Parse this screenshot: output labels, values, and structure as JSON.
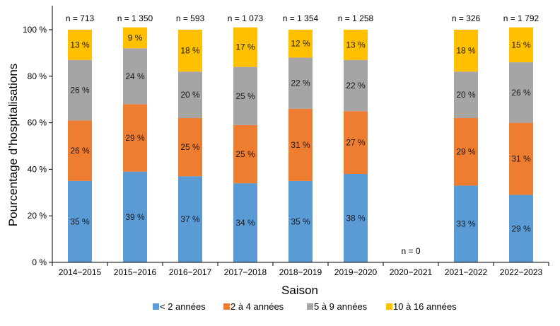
{
  "chart_data": {
    "type": "bar",
    "stacked": true,
    "xlabel": "Saison",
    "ylabel": "Pourcentage d’hospitalisations",
    "ylim": [
      0,
      100
    ],
    "yticks": [
      "0 %",
      "20 %",
      "40 %",
      "60 %",
      "80 %",
      "100 %"
    ],
    "categories": [
      "2014−2015",
      "2015−2016",
      "2016−2017",
      "2017−2018",
      "2018−2019",
      "2019−2020",
      "2020−2021",
      "2021−2022",
      "2022−2023"
    ],
    "n_labels": [
      "n = 713",
      "n = 1 350",
      "n = 593",
      "n = 1 073",
      "n = 1 354",
      "n = 1 258",
      "n = 0",
      "n = 326",
      "n = 1 792"
    ],
    "series": [
      {
        "name": "< 2 années",
        "color": "#5B9BD5",
        "values": [
          35,
          39,
          37,
          34,
          35,
          38,
          null,
          33,
          29
        ]
      },
      {
        "name": "2 à 4 années",
        "color": "#ED7D31",
        "values": [
          26,
          29,
          25,
          25,
          31,
          27,
          null,
          29,
          31
        ]
      },
      {
        "name": "5 à 9 années",
        "color": "#A5A5A5",
        "values": [
          26,
          24,
          20,
          25,
          22,
          22,
          null,
          20,
          26
        ]
      },
      {
        "name": "10 à 16 années",
        "color": "#FFC000",
        "values": [
          13,
          9,
          18,
          17,
          12,
          13,
          null,
          18,
          15
        ]
      }
    ],
    "value_suffix": " %",
    "legend_position": "bottom",
    "grid": false
  }
}
